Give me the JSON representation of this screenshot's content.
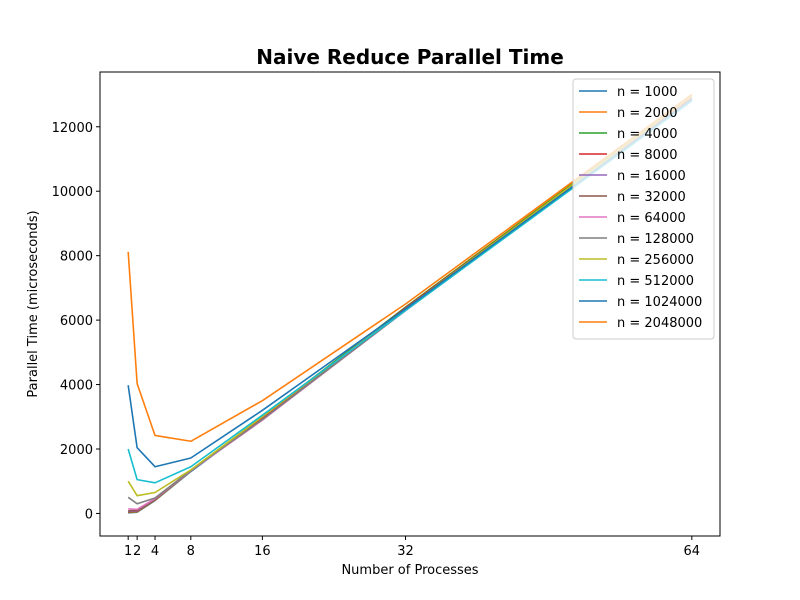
{
  "chart_data": {
    "type": "line",
    "title": "Naive Reduce Parallel Time",
    "xlabel": "Number of Processes",
    "ylabel": "Parallel Time (microseconds)",
    "x": [
      1,
      2,
      4,
      8,
      16,
      32,
      64
    ],
    "xticks": [
      1,
      2,
      4,
      8,
      16,
      32,
      64
    ],
    "yticks": [
      0,
      2000,
      4000,
      6000,
      8000,
      10000,
      12000
    ],
    "xlim": [
      -2.15,
      67.15
    ],
    "ylim": [
      -700,
      13700
    ],
    "legend_position": "top-right",
    "series": [
      {
        "name": "n = 1000",
        "color": "#1f77b4",
        "values": [
          20,
          40,
          400,
          1300,
          2950,
          6300,
          12900
        ]
      },
      {
        "name": "n = 2000",
        "color": "#ff7f0e",
        "values": [
          30,
          50,
          410,
          1320,
          3000,
          6400,
          13000
        ]
      },
      {
        "name": "n = 4000",
        "color": "#2ca02c",
        "values": [
          40,
          60,
          420,
          1330,
          3000,
          6400,
          12950
        ]
      },
      {
        "name": "n = 8000",
        "color": "#d62728",
        "values": [
          50,
          70,
          430,
          1340,
          2950,
          6380,
          12900
        ]
      },
      {
        "name": "n = 16000",
        "color": "#9467bd",
        "values": [
          60,
          80,
          440,
          1330,
          2900,
          6350,
          12850
        ]
      },
      {
        "name": "n = 32000",
        "color": "#8c564b",
        "values": [
          80,
          100,
          450,
          1330,
          2900,
          6330,
          12850
        ]
      },
      {
        "name": "n = 64000",
        "color": "#e377c2",
        "values": [
          140,
          130,
          460,
          1330,
          2900,
          6300,
          12850
        ]
      },
      {
        "name": "n = 128000",
        "color": "#7f7f7f",
        "values": [
          500,
          300,
          480,
          1340,
          2920,
          6300,
          12850
        ]
      },
      {
        "name": "n = 256000",
        "color": "#bcbd22",
        "values": [
          1000,
          550,
          650,
          1350,
          3000,
          6350,
          12950
        ]
      },
      {
        "name": "n = 512000",
        "color": "#17becf",
        "values": [
          2000,
          1050,
          950,
          1450,
          3050,
          6300,
          12800
        ]
      },
      {
        "name": "n = 1024000",
        "color": "#1f77b4",
        "values": [
          3980,
          2040,
          1450,
          1720,
          3200,
          6350,
          12850
        ]
      },
      {
        "name": "n = 2048000",
        "color": "#ff7f0e",
        "values": [
          8120,
          4030,
          2420,
          2240,
          3500,
          6500,
          13000
        ]
      }
    ]
  }
}
